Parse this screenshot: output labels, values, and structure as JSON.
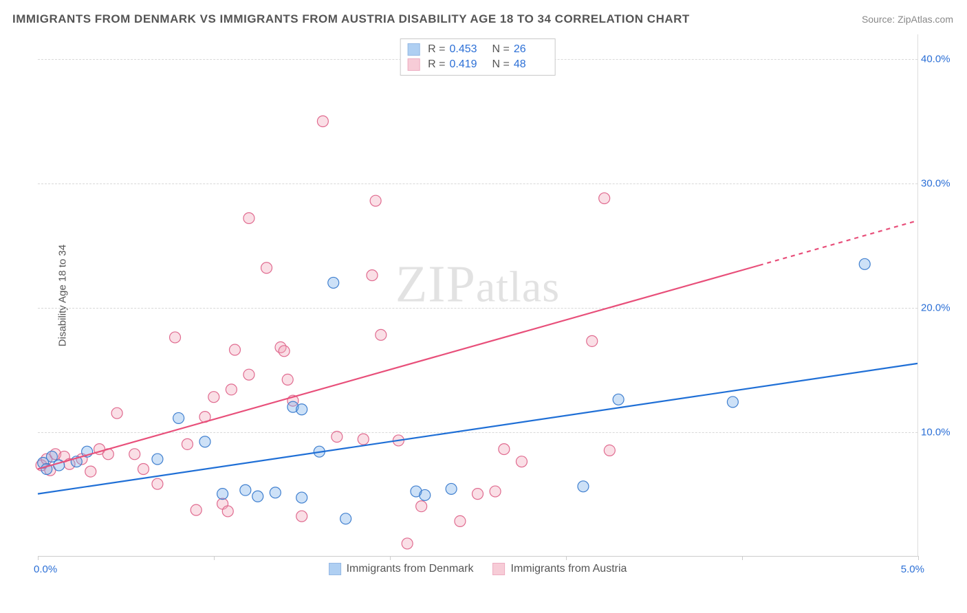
{
  "title": "IMMIGRANTS FROM DENMARK VS IMMIGRANTS FROM AUSTRIA DISABILITY AGE 18 TO 34 CORRELATION CHART",
  "source": "Source: ZipAtlas.com",
  "watermark": "ZIPatlas",
  "ylabel": "Disability Age 18 to 34",
  "chart": {
    "type": "scatter",
    "background_color": "#ffffff",
    "grid_color": "#d8d8d8",
    "grid_dash": "4 4",
    "axis_color": "#cccccc",
    "xlim": [
      0,
      5
    ],
    "ylim": [
      0,
      42
    ],
    "xticks": [
      0,
      1,
      2,
      3,
      4,
      5
    ],
    "xtick_labels_shown": {
      "0": "0.0%",
      "5": "5.0%"
    },
    "yticks": [
      10,
      20,
      30,
      40
    ],
    "ytick_labels": [
      "10.0%",
      "20.0%",
      "30.0%",
      "40.0%"
    ],
    "marker_radius": 8,
    "marker_stroke_width": 1.2,
    "marker_fill_opacity": 0.35,
    "title_fontsize": 17,
    "label_fontsize": 15,
    "tick_color": "#2b6fd6"
  },
  "series": [
    {
      "id": "denmark",
      "label": "Immigrants from Denmark",
      "color": "#6fa8e8",
      "border_color": "#3f7fcf",
      "R": "0.453",
      "N": "26",
      "trend": {
        "x1": 0,
        "y1": 5.0,
        "x2": 5.0,
        "y2": 15.5,
        "color": "#1f6fd6",
        "width": 2.2,
        "dash_after_x": null
      },
      "points": [
        [
          0.03,
          7.5
        ],
        [
          0.05,
          7.0
        ],
        [
          0.08,
          8.0
        ],
        [
          0.12,
          7.3
        ],
        [
          0.22,
          7.6
        ],
        [
          0.28,
          8.4
        ],
        [
          0.68,
          7.8
        ],
        [
          0.8,
          11.1
        ],
        [
          0.95,
          9.2
        ],
        [
          1.05,
          5.0
        ],
        [
          1.18,
          5.3
        ],
        [
          1.25,
          4.8
        ],
        [
          1.35,
          5.1
        ],
        [
          1.5,
          4.7
        ],
        [
          1.45,
          12.0
        ],
        [
          1.5,
          11.8
        ],
        [
          1.6,
          8.4
        ],
        [
          1.68,
          22.0
        ],
        [
          1.75,
          3.0
        ],
        [
          2.15,
          5.2
        ],
        [
          2.2,
          4.9
        ],
        [
          2.35,
          5.4
        ],
        [
          3.1,
          5.6
        ],
        [
          3.3,
          12.6
        ],
        [
          3.95,
          12.4
        ],
        [
          4.7,
          23.5
        ]
      ]
    },
    {
      "id": "austria",
      "label": "Immigrants from Austria",
      "color": "#f2a3b8",
      "border_color": "#e06a8f",
      "R": "0.419",
      "N": "48",
      "trend": {
        "x1": 0,
        "y1": 7.0,
        "x2": 5.0,
        "y2": 27.0,
        "color": "#e84f7a",
        "width": 2.2,
        "dash_after_x": 4.1
      },
      "points": [
        [
          0.02,
          7.3
        ],
        [
          0.05,
          7.8
        ],
        [
          0.07,
          6.9
        ],
        [
          0.1,
          8.2
        ],
        [
          0.15,
          8.0
        ],
        [
          0.18,
          7.4
        ],
        [
          0.25,
          7.8
        ],
        [
          0.3,
          6.8
        ],
        [
          0.35,
          8.6
        ],
        [
          0.4,
          8.2
        ],
        [
          0.45,
          11.5
        ],
        [
          0.55,
          8.2
        ],
        [
          0.6,
          7.0
        ],
        [
          0.68,
          5.8
        ],
        [
          0.78,
          17.6
        ],
        [
          0.85,
          9.0
        ],
        [
          0.9,
          3.7
        ],
        [
          0.95,
          11.2
        ],
        [
          1.0,
          12.8
        ],
        [
          1.05,
          4.2
        ],
        [
          1.08,
          3.6
        ],
        [
          1.1,
          13.4
        ],
        [
          1.12,
          16.6
        ],
        [
          1.2,
          27.2
        ],
        [
          1.2,
          14.6
        ],
        [
          1.3,
          23.2
        ],
        [
          1.38,
          16.8
        ],
        [
          1.4,
          16.5
        ],
        [
          1.42,
          14.2
        ],
        [
          1.45,
          12.5
        ],
        [
          1.5,
          3.2
        ],
        [
          1.62,
          35.0
        ],
        [
          1.7,
          9.6
        ],
        [
          1.85,
          9.4
        ],
        [
          1.9,
          22.6
        ],
        [
          1.92,
          28.6
        ],
        [
          1.95,
          17.8
        ],
        [
          2.05,
          9.3
        ],
        [
          2.1,
          1.0
        ],
        [
          2.18,
          4.0
        ],
        [
          2.4,
          2.8
        ],
        [
          2.5,
          5.0
        ],
        [
          2.6,
          5.2
        ],
        [
          2.65,
          8.6
        ],
        [
          2.75,
          7.6
        ],
        [
          3.15,
          17.3
        ],
        [
          3.22,
          28.8
        ],
        [
          3.25,
          8.5
        ]
      ]
    }
  ],
  "statbox": {
    "labels": {
      "R": "R =",
      "N": "N ="
    }
  },
  "legend": {
    "items": [
      {
        "ref": "denmark"
      },
      {
        "ref": "austria"
      }
    ]
  }
}
